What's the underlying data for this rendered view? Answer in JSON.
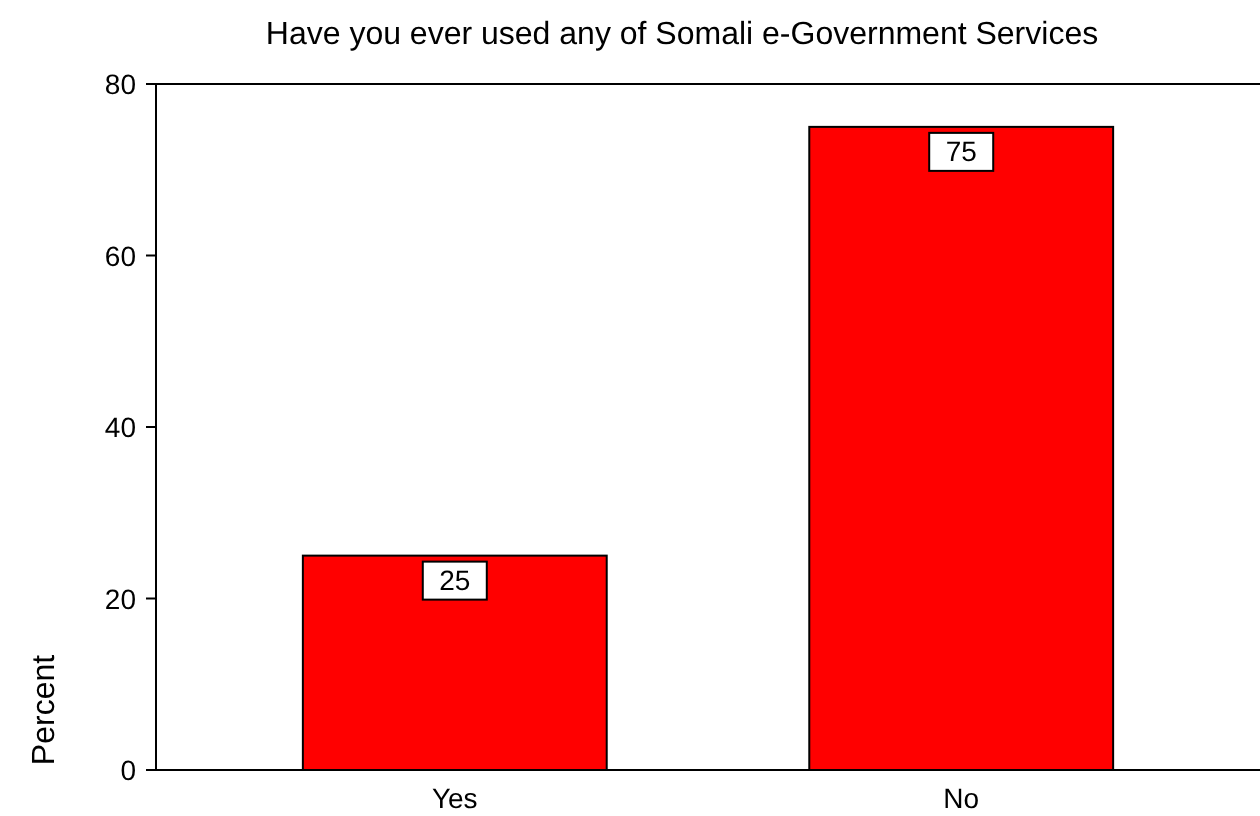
{
  "chart_data": {
    "type": "bar",
    "title": "Have you ever used any of Somali e-Government Services",
    "ylabel": "Percent",
    "categories": [
      "Yes",
      "No"
    ],
    "values": [
      25,
      75
    ],
    "color": "#ff0000",
    "ylim": [
      0,
      80
    ],
    "yticks": [
      0,
      20,
      40,
      60,
      80
    ],
    "data_labels": true,
    "grid": false
  }
}
